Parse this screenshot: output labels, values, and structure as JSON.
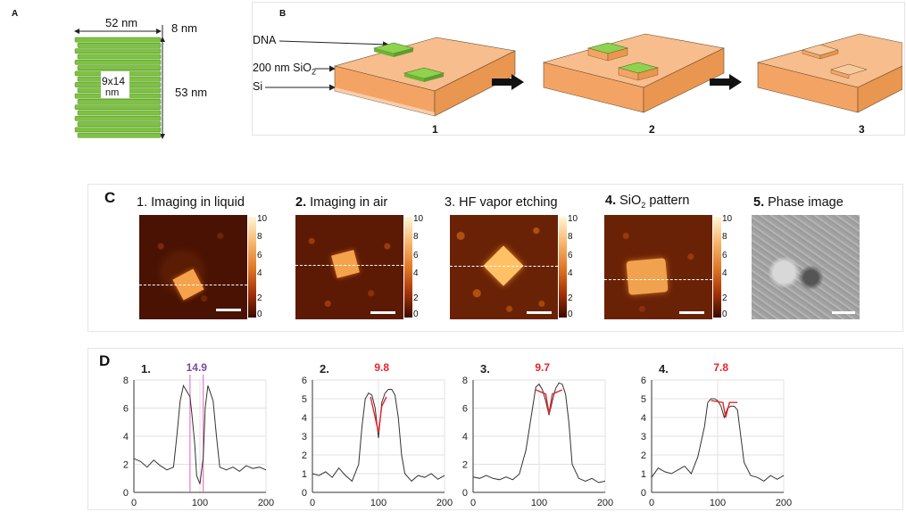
{
  "panel_letters": {
    "a": "A",
    "b": "B",
    "c": "C",
    "d": "D"
  },
  "panel_a": {
    "width_label": "52 nm",
    "thickness_label": "8 nm",
    "height_label": "53 nm",
    "cavity_label_1": "9x14",
    "cavity_label_2": "nm"
  },
  "panel_b": {
    "label_dna": "DNA",
    "label_sio2_prefix": "200 nm SiO",
    "label_sio2_sub": "2",
    "label_si": "Si",
    "step_labels": [
      "1",
      "2",
      "3"
    ]
  },
  "panel_c": {
    "titles": [
      {
        "num": "1.",
        "text": "Imaging in liquid"
      },
      {
        "num": "2.",
        "text": "Imaging in air"
      },
      {
        "num": "3.",
        "text": "HF vapor etching"
      },
      {
        "num": "4.",
        "text": "SiO",
        "sub": "2",
        "tail": " pattern"
      },
      {
        "num": "5.",
        "text": "Phase image"
      }
    ],
    "colorbar_ticks": [
      "10",
      "8",
      "6",
      "4",
      "2",
      "0"
    ]
  },
  "colors": {
    "afm_dark": "#3a0a00",
    "afm_bright": "#ffe6b0",
    "dna_green": "#7ec242",
    "substrate_orange": "#f5a96a",
    "profile_red": "#e8232a",
    "profile_purple": "#7b4a9e"
  },
  "chart_data": [
    {
      "type": "line",
      "panel_label": "1.",
      "annotation": "14.9",
      "annotation_color": "#7b4a9e",
      "ylim": [
        0,
        8
      ],
      "yticks": [
        0,
        2,
        4,
        6,
        8
      ],
      "xlim": [
        0,
        200
      ],
      "xticks": [
        0,
        100,
        200
      ],
      "marker_lines_x": [
        85,
        105
      ],
      "series": [
        {
          "x": [
            0,
            10,
            20,
            30,
            40,
            50,
            60,
            65,
            70,
            75,
            80,
            85,
            88,
            92,
            95,
            100,
            105,
            108,
            112,
            115,
            120,
            125,
            130,
            140,
            150,
            160,
            170,
            180,
            190,
            200
          ],
          "values": [
            2.4,
            2.2,
            1.8,
            2.3,
            1.9,
            1.6,
            1.8,
            4.0,
            6.5,
            7.6,
            7.2,
            6.8,
            5.5,
            3.5,
            1.2,
            0.6,
            2.5,
            6.0,
            7.6,
            7.2,
            6.5,
            4.0,
            1.8,
            1.6,
            1.8,
            1.5,
            1.9,
            1.7,
            1.8,
            1.6
          ]
        }
      ]
    },
    {
      "type": "line",
      "panel_label": "2.",
      "annotation": "9.8",
      "annotation_color": "#e8232a",
      "ylim": [
        0,
        6
      ],
      "yticks": [
        0,
        1,
        2,
        3,
        4,
        5,
        6
      ],
      "xlim": [
        0,
        200
      ],
      "xticks": [
        0,
        100,
        200
      ],
      "series": [
        {
          "x": [
            0,
            10,
            20,
            30,
            40,
            50,
            60,
            70,
            75,
            80,
            85,
            90,
            95,
            100,
            105,
            110,
            115,
            120,
            125,
            130,
            135,
            140,
            150,
            160,
            170,
            180,
            190,
            200
          ],
          "values": [
            1.0,
            0.9,
            1.1,
            0.8,
            1.3,
            0.9,
            0.6,
            1.5,
            3.5,
            5.0,
            5.3,
            5.2,
            4.5,
            2.9,
            4.8,
            5.3,
            5.5,
            5.5,
            5.2,
            4.0,
            2.0,
            1.0,
            0.6,
            0.9,
            0.8,
            1.0,
            0.7,
            0.9
          ]
        },
        {
          "x": [
            88,
            95,
            100,
            105,
            112
          ],
          "values": [
            5.1,
            4.0,
            3.2,
            4.6,
            5.1
          ]
        }
      ]
    },
    {
      "type": "line",
      "panel_label": "3.",
      "annotation": "9.7",
      "annotation_color": "#e8232a",
      "ylim": [
        0,
        8
      ],
      "yticks": [
        0,
        2,
        4,
        6,
        8
      ],
      "xlim": [
        0,
        200
      ],
      "xticks": [
        0,
        100,
        200
      ],
      "series": [
        {
          "x": [
            0,
            10,
            20,
            30,
            40,
            50,
            60,
            70,
            80,
            90,
            95,
            100,
            105,
            110,
            115,
            120,
            125,
            130,
            135,
            140,
            145,
            150,
            160,
            170,
            180,
            190,
            200
          ],
          "values": [
            1.1,
            1.0,
            1.2,
            1.0,
            0.9,
            1.1,
            0.9,
            1.3,
            3.0,
            6.0,
            7.5,
            7.7,
            7.3,
            6.5,
            5.5,
            6.5,
            7.4,
            7.8,
            7.7,
            7.0,
            5.0,
            2.0,
            1.0,
            0.8,
            1.0,
            0.7,
            0.8
          ]
        },
        {
          "x": [
            95,
            110,
            115,
            120,
            135
          ],
          "values": [
            7.3,
            7.0,
            5.6,
            7.0,
            7.3
          ]
        }
      ]
    },
    {
      "type": "line",
      "panel_label": "4.",
      "annotation": "7.8",
      "annotation_color": "#e8232a",
      "ylim": [
        0,
        6
      ],
      "yticks": [
        0,
        1,
        2,
        3,
        4,
        5,
        6
      ],
      "xlim": [
        0,
        200
      ],
      "xticks": [
        0,
        100,
        200
      ],
      "series": [
        {
          "x": [
            0,
            10,
            20,
            30,
            40,
            50,
            60,
            70,
            80,
            85,
            90,
            95,
            100,
            105,
            110,
            115,
            120,
            125,
            130,
            135,
            140,
            150,
            160,
            170,
            180,
            190,
            200
          ],
          "values": [
            0.8,
            1.3,
            1.1,
            1.0,
            1.2,
            1.4,
            1.0,
            1.9,
            3.5,
            4.8,
            5.0,
            5.0,
            4.9,
            4.6,
            4.0,
            4.5,
            4.6,
            4.6,
            4.4,
            3.0,
            1.6,
            0.9,
            0.8,
            0.6,
            0.9,
            0.7,
            0.9
          ]
        },
        {
          "x": [
            90,
            108,
            112,
            118,
            130
          ],
          "values": [
            4.9,
            4.8,
            4.0,
            4.8,
            4.8
          ]
        }
      ]
    }
  ]
}
